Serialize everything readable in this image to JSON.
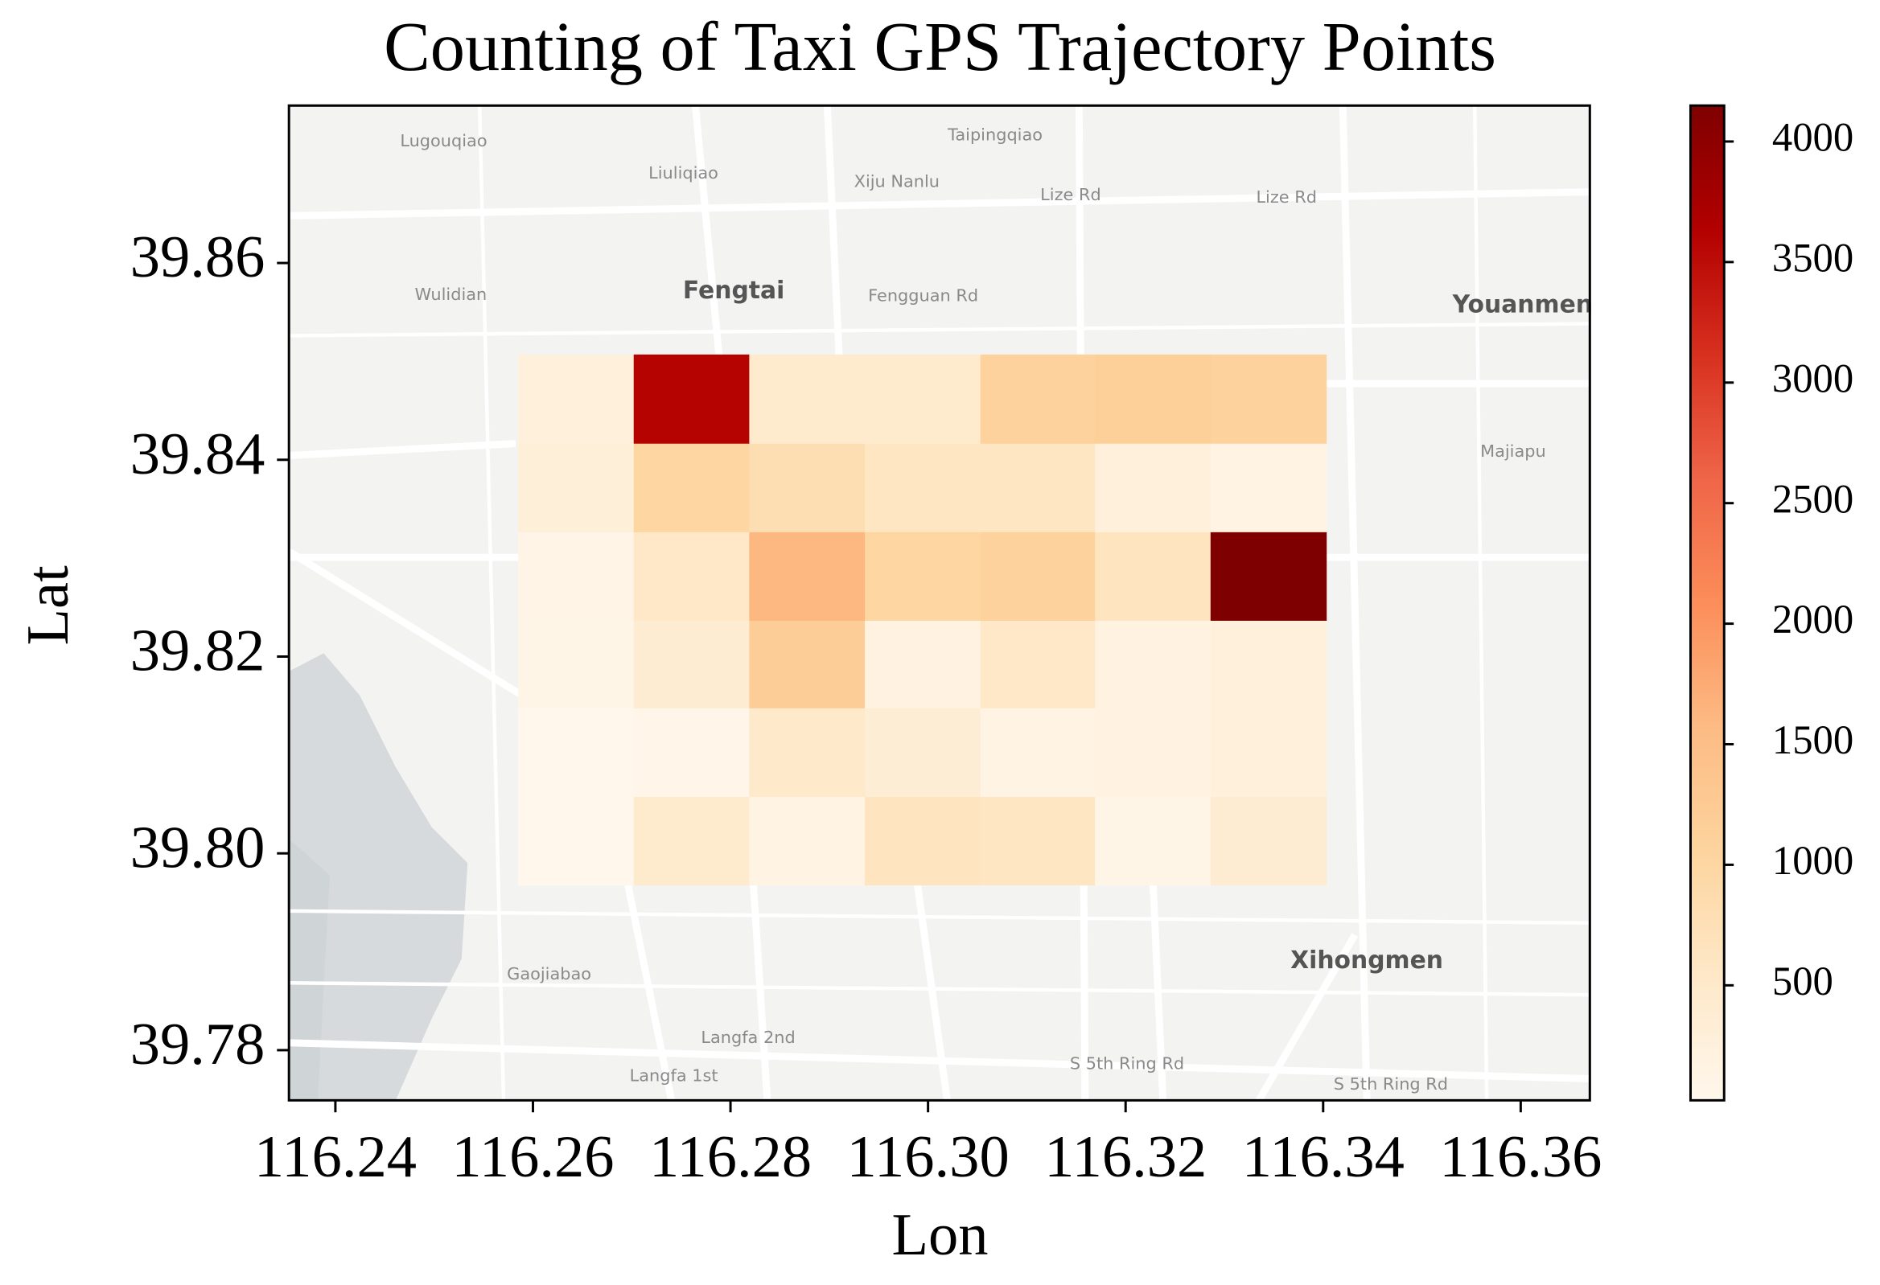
{
  "chart_data": {
    "type": "heatmap",
    "title": "Counting of Taxi GPS Trajectory Points",
    "xlabel": "Lon",
    "ylabel": "Lat",
    "x_edges": [
      116.2585,
      116.2702,
      116.2819,
      116.2936,
      116.3053,
      116.3169,
      116.3286,
      116.3403
    ],
    "y_edges": [
      39.7968,
      39.8058,
      39.8148,
      39.8237,
      39.8327,
      39.8417,
      39.8507
    ],
    "values": [
      [
        23,
        450,
        150,
        650,
        600,
        100,
        400
      ],
      [
        40,
        80,
        500,
        350,
        150,
        200,
        250
      ],
      [
        100,
        400,
        1200,
        200,
        550,
        200,
        250
      ],
      [
        120,
        550,
        1600,
        1000,
        1100,
        650,
        4149
      ],
      [
        300,
        1000,
        800,
        600,
        600,
        250,
        150
      ],
      [
        250,
        3600,
        450,
        450,
        1100,
        1150,
        1100
      ]
    ],
    "xlim": [
      116.2353,
      116.367
    ],
    "ylim": [
      39.7749,
      39.876
    ],
    "xticks": [
      116.24,
      116.26,
      116.28,
      {
        "value": 116.3,
        "label": "116.30"
      },
      116.32,
      116.34,
      116.36
    ],
    "yticks": [
      39.78,
      {
        "value": 39.8,
        "label": "39.80"
      },
      39.82,
      39.84,
      39.86
    ],
    "colorbar": {
      "clim": [
        23,
        4149
      ],
      "ticks": [
        500,
        1000,
        1500,
        2000,
        2500,
        3000,
        3500,
        4000
      ]
    },
    "colorscale": [
      "#fff7ec",
      "#fee8c8",
      "#fdd49e",
      "#fdbb84",
      "#fc8d59",
      "#ef6548",
      "#d7301f",
      "#b30000",
      "#7f0000"
    ],
    "map_labels": [
      "Lugouqiao",
      "Liuliqiao",
      "Taipingqiao",
      "Xiju Nanlu",
      "Lize Rd",
      "Lize Rd",
      "Wulidian",
      "Fengtai",
      "Fengguan Rd",
      "Youanmen",
      "Majiapu",
      "Gaojiabao",
      "Langfa 2nd",
      "Langfa 1st",
      "Xihongmen",
      "S 5th Ring Rd",
      "S 5th Ring Rd"
    ]
  }
}
